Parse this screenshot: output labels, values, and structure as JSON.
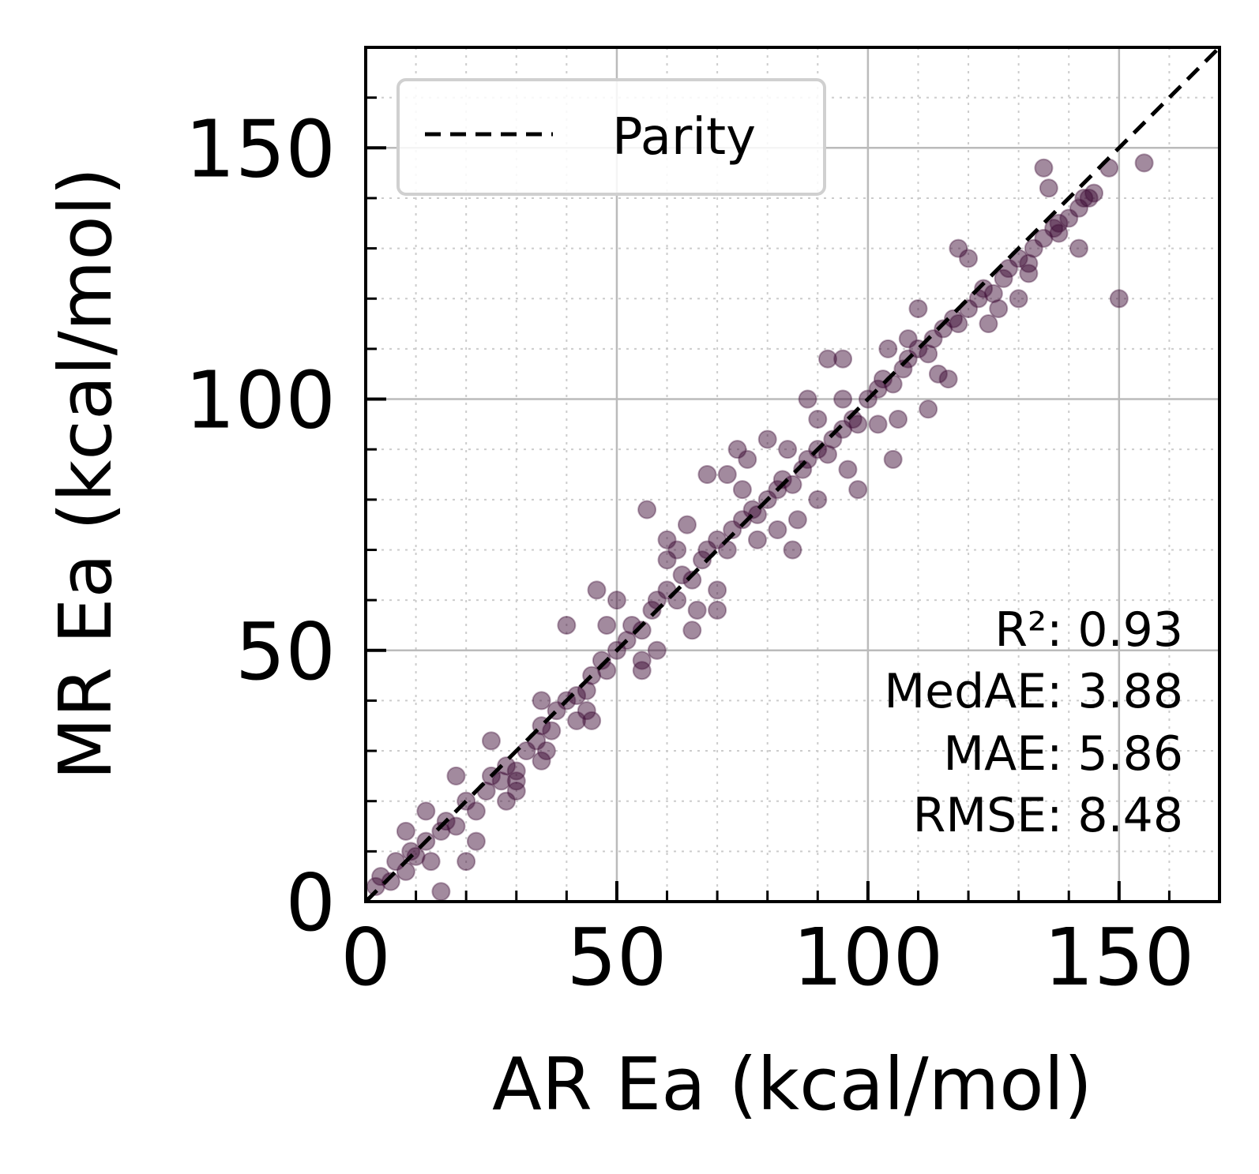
{
  "chart_data": {
    "type": "scatter",
    "xlabel": "AR Ea (kcal/mol)",
    "ylabel": "MR Ea (kcal/mol)",
    "xlim": [
      0,
      170
    ],
    "ylim": [
      0,
      170
    ],
    "xticks": [
      "0",
      "50",
      "100",
      "150"
    ],
    "yticks": [
      "0",
      "50",
      "100",
      "150"
    ],
    "grid": true,
    "minor_grid": true,
    "point_color": "#3d0a35",
    "point_alpha": 0.12,
    "legend": {
      "placement": "top-left",
      "entries": [
        {
          "label": "Parity",
          "style": "dashed",
          "color": "#000000"
        }
      ]
    },
    "parity_line": {
      "from": [
        0,
        0
      ],
      "to": [
        170,
        170
      ]
    },
    "stats": [
      {
        "label": "R²",
        "value": "0.93",
        "text": "R²: 0.93"
      },
      {
        "label": "MedAE",
        "value": "3.88",
        "text": "MedAE: 3.88"
      },
      {
        "label": "MAE",
        "value": "5.86",
        "text": "MAE: 5.86"
      },
      {
        "label": "RMSE",
        "value": "8.48",
        "text": "RMSE: 8.48"
      }
    ],
    "series": [
      {
        "x": [
          2,
          3,
          5,
          6,
          8,
          9,
          10,
          12,
          13,
          15,
          16,
          18,
          20,
          22,
          24,
          25,
          27,
          28,
          30,
          32,
          34,
          35,
          37,
          38,
          40,
          42,
          44,
          45,
          47,
          48,
          50,
          52,
          53,
          55,
          57,
          58,
          60,
          62,
          63,
          65,
          67,
          68,
          70,
          72,
          73,
          75,
          77,
          78,
          80,
          82,
          83,
          85,
          87,
          88,
          90,
          92,
          93,
          95,
          97,
          98,
          100,
          102,
          103,
          105,
          107,
          108,
          110,
          112,
          113,
          115,
          117,
          118,
          120,
          122,
          123,
          125,
          127,
          128,
          130,
          132,
          133,
          135,
          137,
          138,
          140,
          142,
          143,
          145,
          12,
          18,
          25,
          30,
          35,
          42,
          48,
          55,
          60,
          66,
          72,
          78,
          84,
          90,
          95,
          102,
          108,
          114,
          120,
          126,
          132,
          138,
          144,
          22,
          28,
          36,
          44,
          50,
          58,
          64,
          70,
          76,
          82,
          88,
          96,
          104,
          112,
          118,
          124,
          130,
          136,
          142,
          148,
          155,
          150,
          40,
          46,
          56,
          62,
          68,
          74,
          80,
          86,
          92,
          98,
          106,
          116,
          35,
          45,
          55,
          65,
          75,
          85,
          95,
          105,
          20,
          30,
          8,
          15,
          60,
          70,
          90,
          110,
          135
        ],
        "y": [
          3,
          5,
          4,
          8,
          6,
          10,
          9,
          12,
          8,
          14,
          16,
          15,
          20,
          18,
          22,
          25,
          24,
          27,
          26,
          30,
          32,
          35,
          34,
          38,
          40,
          41,
          42,
          45,
          48,
          46,
          50,
          52,
          55,
          54,
          58,
          60,
          62,
          60,
          65,
          64,
          68,
          70,
          72,
          70,
          74,
          76,
          78,
          77,
          80,
          82,
          84,
          83,
          86,
          88,
          90,
          89,
          92,
          94,
          96,
          95,
          100,
          102,
          104,
          103,
          106,
          108,
          110,
          109,
          112,
          114,
          116,
          115,
          118,
          120,
          122,
          121,
          124,
          126,
          128,
          127,
          130,
          132,
          134,
          133,
          136,
          138,
          140,
          141,
          18,
          25,
          32,
          22,
          40,
          36,
          55,
          48,
          68,
          58,
          85,
          72,
          90,
          80,
          100,
          95,
          112,
          105,
          128,
          118,
          125,
          135,
          140,
          12,
          20,
          30,
          38,
          60,
          50,
          75,
          62,
          88,
          74,
          100,
          86,
          110,
          98,
          130,
          115,
          120,
          142,
          130,
          146,
          147,
          120,
          55,
          62,
          78,
          70,
          85,
          90,
          92,
          76,
          108,
          82,
          96,
          104,
          28,
          36,
          46,
          54,
          82,
          70,
          108,
          88,
          8,
          24,
          14,
          2,
          72,
          58,
          96,
          118,
          146
        ]
      }
    ]
  }
}
